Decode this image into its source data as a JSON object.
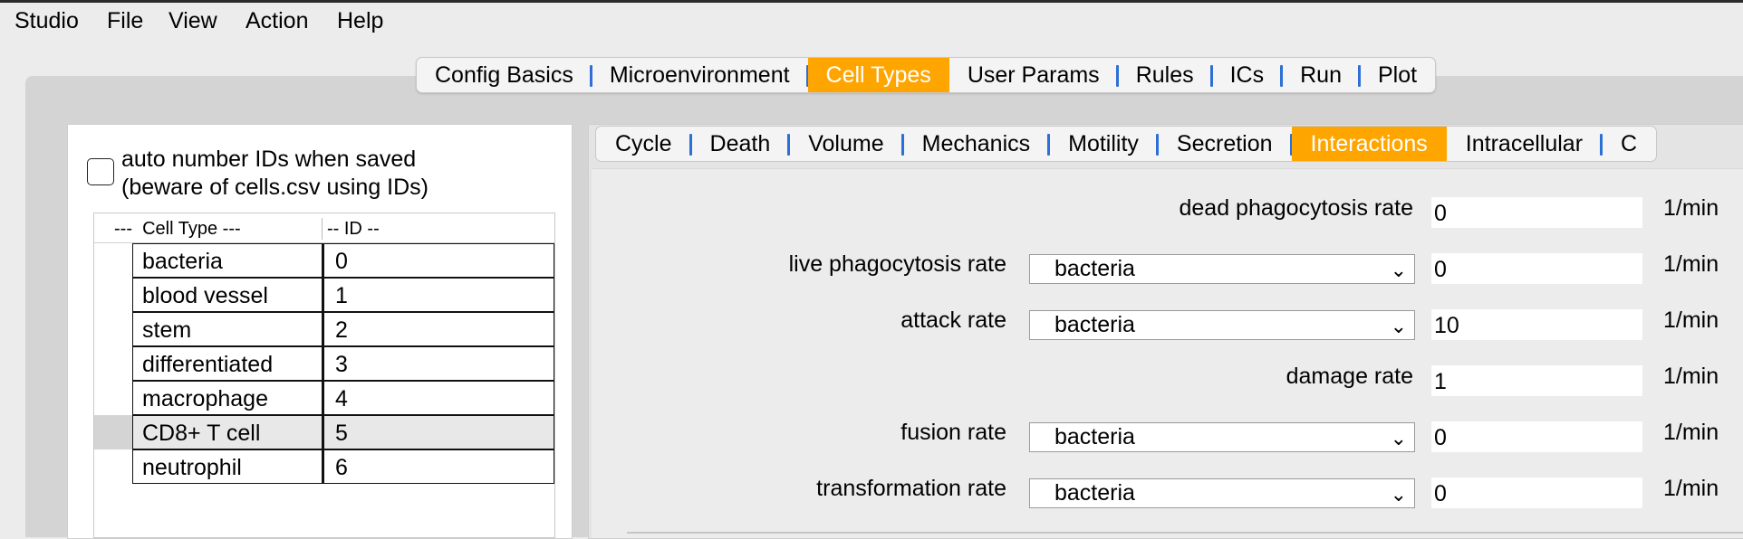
{
  "menubar": {
    "items": [
      "Studio",
      "File",
      "View",
      "Action",
      "Help"
    ]
  },
  "main_tabs": {
    "items": [
      "Config Basics",
      "Microenvironment",
      "Cell Types",
      "User Params",
      "Rules",
      "ICs",
      "Run",
      "Plot"
    ],
    "active": "Cell Types"
  },
  "left_panel": {
    "auto_number_label_line1": "auto number IDs when saved",
    "auto_number_label_line2": "(beware of cells.csv using IDs)",
    "auto_number_checked": false,
    "table": {
      "headers": [
        "---  Cell Type ---",
        "-- ID --"
      ],
      "rows": [
        {
          "name": "bacteria",
          "id": "0"
        },
        {
          "name": "blood vessel",
          "id": "1"
        },
        {
          "name": "stem",
          "id": "2"
        },
        {
          "name": "differentiated",
          "id": "3"
        },
        {
          "name": "macrophage",
          "id": "4"
        },
        {
          "name": "CD8+ T cell",
          "id": "5",
          "selected": true
        },
        {
          "name": "neutrophil",
          "id": "6"
        }
      ]
    }
  },
  "sub_tabs": {
    "items": [
      "Cycle",
      "Death",
      "Volume",
      "Mechanics",
      "Motility",
      "Secretion",
      "Interactions",
      "Intracellular",
      "C"
    ],
    "active": "Interactions"
  },
  "interactions": {
    "rows": [
      {
        "label": "dead phagocytosis rate",
        "value": "0",
        "unit": "1/min"
      },
      {
        "label": "live phagocytosis rate",
        "dropdown": "bacteria",
        "value": "0",
        "unit": "1/min"
      },
      {
        "label": "attack rate",
        "dropdown": "bacteria",
        "value": "10",
        "unit": "1/min"
      },
      {
        "label": "damage rate",
        "value": "1",
        "unit": "1/min"
      },
      {
        "label": "fusion rate",
        "dropdown": "bacteria",
        "value": "0",
        "unit": "1/min"
      },
      {
        "label": "transformation rate",
        "dropdown": "bacteria",
        "value": "0",
        "unit": "1/min"
      }
    ]
  },
  "colors": {
    "active_tab": "#ffa500",
    "tab_separator": "#2c6fd6"
  },
  "icons": {
    "dropdown": "chevron-down-icon"
  }
}
